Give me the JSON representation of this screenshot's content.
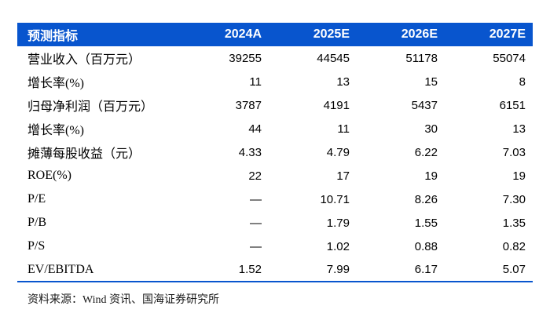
{
  "colors": {
    "header_bg": "#0855CE",
    "header_text": "#FFFFFF",
    "rule": "#0855CE",
    "body_text": "#000000"
  },
  "table": {
    "header": [
      "预测指标",
      "2024A",
      "2025E",
      "2026E",
      "2027E"
    ],
    "rows": [
      {
        "label": "营业收入（百万元）",
        "values": [
          "39255",
          "44545",
          "51178",
          "55074"
        ]
      },
      {
        "label": "增长率(%)",
        "values": [
          "11",
          "13",
          "15",
          "8"
        ]
      },
      {
        "label": "归母净利润（百万元）",
        "values": [
          "3787",
          "4191",
          "5437",
          "6151"
        ]
      },
      {
        "label": "增长率(%)",
        "values": [
          "44",
          "11",
          "30",
          "13"
        ]
      },
      {
        "label": "摊薄每股收益（元）",
        "values": [
          "4.33",
          "4.79",
          "6.22",
          "7.03"
        ]
      },
      {
        "label": "ROE(%)",
        "values": [
          "22",
          "17",
          "19",
          "19"
        ]
      },
      {
        "label": "P/E",
        "values": [
          "—",
          "10.71",
          "8.26",
          "7.30"
        ]
      },
      {
        "label": "P/B",
        "values": [
          "—",
          "1.79",
          "1.55",
          "1.35"
        ]
      },
      {
        "label": "P/S",
        "values": [
          "—",
          "1.02",
          "0.88",
          "0.82"
        ]
      },
      {
        "label": "EV/EBITDA",
        "values": [
          "1.52",
          "7.99",
          "6.17",
          "5.07"
        ]
      }
    ],
    "source_note": "资料来源：Wind 资讯、国海证券研究所"
  }
}
